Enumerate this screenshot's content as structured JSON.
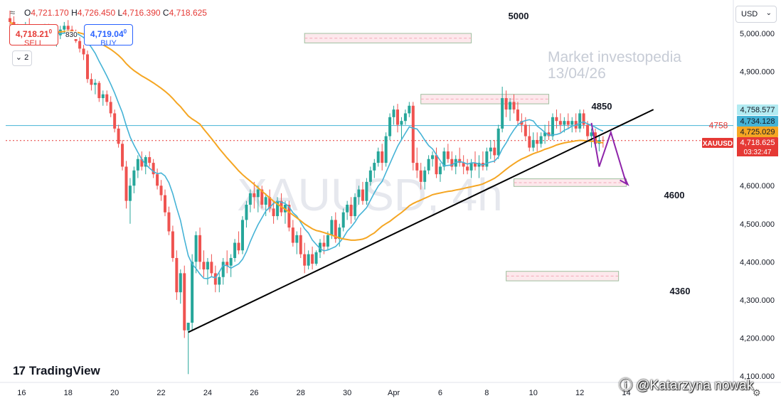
{
  "header": {
    "ohlc": [
      {
        "label": "O",
        "value": "4,721.170"
      },
      {
        "label": "H",
        "value": "4,726.450"
      },
      {
        "label": "L",
        "value": "4,716.390"
      },
      {
        "label": "C",
        "value": "4,718.625"
      }
    ],
    "sell_price": "4,718.21",
    "sell_price_sup": "0",
    "sell_label": "SELL",
    "buy_price": "4,719.04",
    "buy_price_sup": "0",
    "buy_label": "BUY",
    "spread": "830",
    "indicator_count": "2",
    "currency": "USD"
  },
  "branding": {
    "logo_text": "TradingView",
    "author": "@Katarzyna nowak"
  },
  "chart_data": {
    "type": "candlestick",
    "symbol_watermark": "XAUUSD, 4h",
    "annotation_text": [
      "Market investopedia",
      "13/04/26"
    ],
    "y_axis": {
      "min": 4100,
      "max": 5000,
      "ticks": [
        4100,
        4200,
        4300,
        4400,
        4500,
        4600,
        4700,
        4800,
        4900,
        5000
      ],
      "tick_labels": [
        "4,100.000",
        "4,200.000",
        "4,300.000",
        "4,400.000",
        "4,500.000",
        "4,600.000",
        "4,700.000",
        "4,800.000",
        "4,900.000",
        "5,000.000"
      ]
    },
    "x_axis": {
      "tick_labels": [
        "16",
        "18",
        "20",
        "22",
        "24",
        "26",
        "28",
        "30",
        "Apr",
        "6",
        "8",
        "10",
        "12",
        "14"
      ],
      "tick_index": [
        3,
        15,
        27,
        39,
        51,
        63,
        75,
        87,
        99,
        111,
        123,
        135,
        147,
        159
      ]
    },
    "candles": [
      [
        5040,
        5060,
        5010,
        5030
      ],
      [
        5030,
        5045,
        5000,
        5015
      ],
      [
        5015,
        5025,
        4985,
        4995
      ],
      [
        4995,
        5010,
        4975,
        5000
      ],
      [
        5000,
        5030,
        4990,
        5020
      ],
      [
        5020,
        5040,
        5005,
        5010
      ],
      [
        5010,
        5020,
        4980,
        4990
      ],
      [
        4990,
        5000,
        4970,
        4985
      ],
      [
        4985,
        5010,
        4975,
        5005
      ],
      [
        5005,
        5025,
        4995,
        5015
      ],
      [
        5015,
        5025,
        4990,
        5000
      ],
      [
        5000,
        5010,
        4975,
        4985
      ],
      [
        4985,
        5000,
        4965,
        4995
      ],
      [
        4995,
        5020,
        4985,
        5010
      ],
      [
        5010,
        5030,
        5000,
        5020
      ],
      [
        5020,
        5035,
        5005,
        5010
      ],
      [
        5010,
        5020,
        4990,
        5000
      ],
      [
        5000,
        5010,
        4975,
        4980
      ],
      [
        4980,
        4990,
        4950,
        4960
      ],
      [
        4960,
        4970,
        4930,
        4945
      ],
      [
        4945,
        4955,
        4870,
        4880
      ],
      [
        4880,
        4895,
        4850,
        4865
      ],
      [
        4865,
        4880,
        4840,
        4870
      ],
      [
        4870,
        4875,
        4820,
        4830
      ],
      [
        4830,
        4850,
        4810,
        4840
      ],
      [
        4840,
        4850,
        4810,
        4820
      ],
      [
        4820,
        4835,
        4780,
        4790
      ],
      [
        4790,
        4800,
        4740,
        4750
      ],
      [
        4750,
        4760,
        4700,
        4710
      ],
      [
        4710,
        4720,
        4640,
        4650
      ],
      [
        4650,
        4665,
        4540,
        4560
      ],
      [
        4560,
        4620,
        4500,
        4600
      ],
      [
        4600,
        4650,
        4580,
        4640
      ],
      [
        4640,
        4680,
        4620,
        4670
      ],
      [
        4670,
        4690,
        4640,
        4650
      ],
      [
        4650,
        4680,
        4630,
        4675
      ],
      [
        4675,
        4690,
        4650,
        4660
      ],
      [
        4660,
        4670,
        4620,
        4630
      ],
      [
        4630,
        4645,
        4590,
        4600
      ],
      [
        4600,
        4615,
        4560,
        4575
      ],
      [
        4575,
        4590,
        4520,
        4530
      ],
      [
        4530,
        4545,
        4470,
        4480
      ],
      [
        4480,
        4495,
        4400,
        4410
      ],
      [
        4410,
        4430,
        4300,
        4320
      ],
      [
        4320,
        4380,
        4290,
        4370
      ],
      [
        4370,
        4390,
        4200,
        4220
      ],
      [
        4220,
        4240,
        4105,
        4240
      ],
      [
        4240,
        4420,
        4220,
        4400
      ],
      [
        4400,
        4480,
        4370,
        4470
      ],
      [
        4470,
        4490,
        4380,
        4400
      ],
      [
        4400,
        4430,
        4360,
        4380
      ],
      [
        4380,
        4410,
        4340,
        4400
      ],
      [
        4400,
        4420,
        4360,
        4370
      ],
      [
        4370,
        4390,
        4320,
        4340
      ],
      [
        4340,
        4370,
        4320,
        4360
      ],
      [
        4360,
        4410,
        4340,
        4400
      ],
      [
        4400,
        4430,
        4370,
        4390
      ],
      [
        4390,
        4420,
        4360,
        4410
      ],
      [
        4410,
        4460,
        4400,
        4450
      ],
      [
        4450,
        4480,
        4420,
        4430
      ],
      [
        4430,
        4520,
        4420,
        4510
      ],
      [
        4510,
        4560,
        4490,
        4550
      ],
      [
        4550,
        4590,
        4530,
        4580
      ],
      [
        4580,
        4610,
        4540,
        4570
      ],
      [
        4570,
        4600,
        4530,
        4590
      ],
      [
        4590,
        4600,
        4540,
        4550
      ],
      [
        4550,
        4580,
        4520,
        4570
      ],
      [
        4570,
        4590,
        4530,
        4540
      ],
      [
        4540,
        4560,
        4500,
        4520
      ],
      [
        4520,
        4570,
        4510,
        4560
      ],
      [
        4560,
        4580,
        4520,
        4530
      ],
      [
        4530,
        4560,
        4500,
        4550
      ],
      [
        4550,
        4560,
        4480,
        4490
      ],
      [
        4490,
        4510,
        4440,
        4450
      ],
      [
        4450,
        4480,
        4420,
        4470
      ],
      [
        4470,
        4490,
        4410,
        4420
      ],
      [
        4420,
        4450,
        4370,
        4390
      ],
      [
        4390,
        4430,
        4380,
        4420
      ],
      [
        4420,
        4440,
        4380,
        4395
      ],
      [
        4395,
        4430,
        4390,
        4425
      ],
      [
        4425,
        4460,
        4410,
        4450
      ],
      [
        4450,
        4470,
        4420,
        4440
      ],
      [
        4440,
        4480,
        4430,
        4470
      ],
      [
        4470,
        4520,
        4460,
        4510
      ],
      [
        4510,
        4530,
        4450,
        4460
      ],
      [
        4460,
        4500,
        4440,
        4490
      ],
      [
        4490,
        4540,
        4480,
        4530
      ],
      [
        4530,
        4560,
        4510,
        4550
      ],
      [
        4550,
        4570,
        4500,
        4520
      ],
      [
        4520,
        4580,
        4510,
        4570
      ],
      [
        4570,
        4600,
        4550,
        4590
      ],
      [
        4590,
        4610,
        4550,
        4560
      ],
      [
        4560,
        4620,
        4550,
        4610
      ],
      [
        4610,
        4650,
        4600,
        4640
      ],
      [
        4640,
        4670,
        4620,
        4660
      ],
      [
        4660,
        4700,
        4650,
        4690
      ],
      [
        4690,
        4710,
        4640,
        4660
      ],
      [
        4660,
        4740,
        4650,
        4730
      ],
      [
        4730,
        4790,
        4720,
        4780
      ],
      [
        4780,
        4810,
        4760,
        4800
      ],
      [
        4800,
        4815,
        4740,
        4760
      ],
      [
        4760,
        4780,
        4720,
        4770
      ],
      [
        4770,
        4800,
        4760,
        4790
      ],
      [
        4790,
        4820,
        4780,
        4810
      ],
      [
        4810,
        4820,
        4640,
        4660
      ],
      [
        4660,
        4700,
        4620,
        4640
      ],
      [
        4640,
        4660,
        4590,
        4610
      ],
      [
        4610,
        4650,
        4590,
        4640
      ],
      [
        4640,
        4680,
        4630,
        4670
      ],
      [
        4670,
        4690,
        4650,
        4680
      ],
      [
        4680,
        4700,
        4620,
        4630
      ],
      [
        4630,
        4660,
        4610,
        4650
      ],
      [
        4650,
        4700,
        4640,
        4690
      ],
      [
        4690,
        4710,
        4660,
        4670
      ],
      [
        4670,
        4690,
        4640,
        4650
      ],
      [
        4650,
        4680,
        4630,
        4670
      ],
      [
        4670,
        4700,
        4650,
        4660
      ],
      [
        4660,
        4680,
        4630,
        4650
      ],
      [
        4650,
        4670,
        4630,
        4640
      ],
      [
        4640,
        4670,
        4620,
        4660
      ],
      [
        4660,
        4690,
        4640,
        4650
      ],
      [
        4650,
        4680,
        4620,
        4660
      ],
      [
        4660,
        4690,
        4640,
        4650
      ],
      [
        4650,
        4700,
        4640,
        4690
      ],
      [
        4690,
        4720,
        4670,
        4700
      ],
      [
        4700,
        4720,
        4660,
        4680
      ],
      [
        4680,
        4760,
        4670,
        4750
      ],
      [
        4750,
        4860,
        4740,
        4830
      ],
      [
        4830,
        4850,
        4780,
        4800
      ],
      [
        4800,
        4830,
        4770,
        4820
      ],
      [
        4820,
        4840,
        4790,
        4800
      ],
      [
        4800,
        4820,
        4760,
        4770
      ],
      [
        4770,
        4790,
        4740,
        4760
      ],
      [
        4760,
        4780,
        4720,
        4730
      ],
      [
        4730,
        4760,
        4690,
        4700
      ],
      [
        4700,
        4740,
        4690,
        4720
      ],
      [
        4720,
        4740,
        4690,
        4710
      ],
      [
        4710,
        4740,
        4700,
        4730
      ],
      [
        4730,
        4760,
        4710,
        4740
      ],
      [
        4740,
        4770,
        4720,
        4730
      ],
      [
        4730,
        4790,
        4720,
        4780
      ],
      [
        4780,
        4800,
        4750,
        4770
      ],
      [
        4770,
        4790,
        4740,
        4760
      ],
      [
        4760,
        4780,
        4740,
        4770
      ],
      [
        4770,
        4790,
        4750,
        4760
      ],
      [
        4760,
        4780,
        4740,
        4770
      ],
      [
        4770,
        4790,
        4740,
        4750
      ],
      [
        4750,
        4800,
        4740,
        4790
      ],
      [
        4790,
        4800,
        4750,
        4760
      ],
      [
        4760,
        4770,
        4720,
        4730
      ],
      [
        4730,
        4750,
        4700,
        4740
      ],
      [
        4740,
        4750,
        4700,
        4710
      ],
      [
        4710,
        4730,
        4690,
        4720
      ],
      [
        4720,
        4730,
        4700,
        4719
      ]
    ],
    "moving_averages": [
      {
        "color": "#45b3d6",
        "period": 9
      },
      {
        "color": "#f5a623",
        "period": 50
      }
    ],
    "trendline": {
      "from": {
        "index": 46,
        "price": 4215
      },
      "to": {
        "index": 166,
        "price": 4800
      },
      "color": "#000000"
    },
    "horizontal_lines": [
      {
        "price": 4758,
        "color": "#45b3d6",
        "style": "solid"
      },
      {
        "price": 4718.625,
        "color": "#e53935",
        "style": "dotted"
      }
    ],
    "zones": [
      {
        "label": "5000",
        "from_index": 76,
        "to_index": 119,
        "price_top": 5000,
        "price_bottom": 4975
      },
      {
        "label": "4850",
        "from_index": 106,
        "to_index": 139,
        "price_top": 4840,
        "price_bottom": 4815
      },
      {
        "label": "4600",
        "from_index": 130,
        "to_index": 159,
        "price_top": 4618,
        "price_bottom": 4598
      },
      {
        "label": "4360",
        "from_index": 128,
        "to_index": 157,
        "price_top": 4375,
        "price_bottom": 4350
      }
    ],
    "projection": {
      "color": "#8e24aa",
      "points": [
        [
          150,
          4765
        ],
        [
          152,
          4650
        ],
        [
          155,
          4740
        ],
        [
          159,
          4605
        ]
      ]
    },
    "price_tags": [
      {
        "text": "4,758.577",
        "price": 4758.577,
        "bg": "#b2ebf2",
        "fg": "#131722"
      },
      {
        "text": "4,734.128",
        "price": 4734.128,
        "bg": "#45b3d6",
        "fg": "#131722"
      },
      {
        "text": "4,725.029",
        "price": 4725.029,
        "bg": "#f5a623",
        "fg": "#131722"
      },
      {
        "text": "4,718.625",
        "price": 4718.625,
        "bg": "#e53935",
        "fg": "#ffffff"
      }
    ],
    "symbol_tag": "XAUUSD",
    "countdown": "03:32:47",
    "level_label_4758": "4758"
  }
}
